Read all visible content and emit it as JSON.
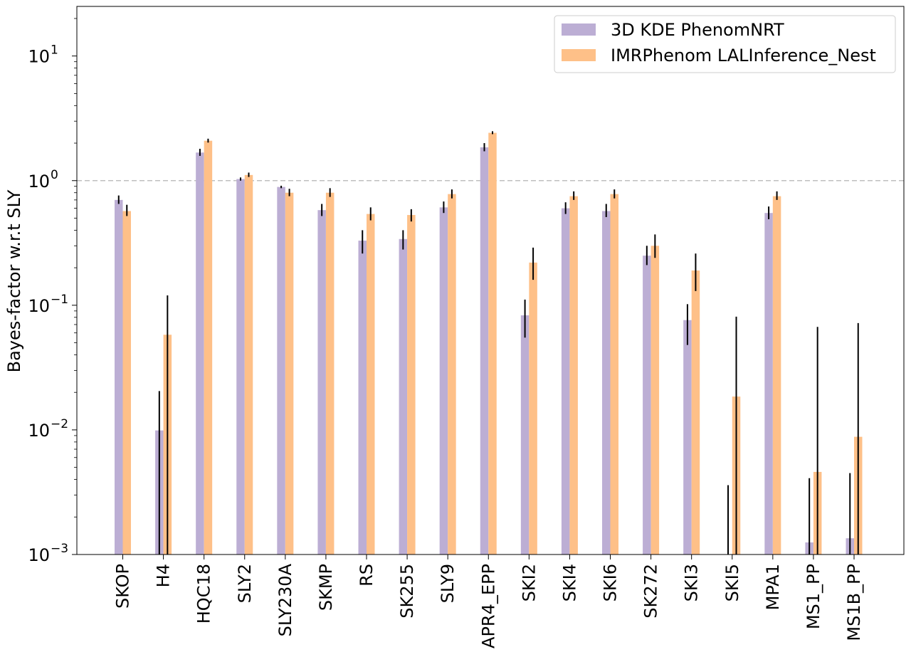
{
  "chart_data": {
    "type": "bar",
    "ylabel": "Bayes-factor w.r.t SLY",
    "yscale": "log",
    "ylim": [
      0.001,
      25
    ],
    "yticks": [
      {
        "value": 0.001,
        "base": "10",
        "exp": "−3"
      },
      {
        "value": 0.01,
        "base": "10",
        "exp": "−2"
      },
      {
        "value": 0.1,
        "base": "10",
        "exp": "−1"
      },
      {
        "value": 1,
        "base": "10",
        "exp": "0"
      },
      {
        "value": 10,
        "base": "10",
        "exp": "1"
      }
    ],
    "reference_line": {
      "value": 1,
      "style": "dashed",
      "color": "#bfbfbf"
    },
    "legend_position": "top-right",
    "categories": [
      "SKOP",
      "H4",
      "HQC18",
      "SLY2",
      "SLY230A",
      "SKMP",
      "RS",
      "SK255",
      "SLY9",
      "APR4_EPP",
      "SKI2",
      "SKI4",
      "SKI6",
      "SK272",
      "SKI3",
      "SKI5",
      "MPA1",
      "MS1_PP",
      "MS1B_PP"
    ],
    "series": [
      {
        "name": "3D KDE PhenomNRT",
        "color": "#bcaed4",
        "values": [
          0.7,
          0.0099,
          1.68,
          1.03,
          0.89,
          0.58,
          0.33,
          0.34,
          0.61,
          1.85,
          0.083,
          0.6,
          0.57,
          0.25,
          0.076,
          0.0009,
          0.55,
          0.00125,
          0.00135
        ],
        "err_low": [
          0.65,
          0.001,
          1.58,
          1.0,
          0.87,
          0.52,
          0.26,
          0.28,
          0.55,
          1.72,
          0.055,
          0.54,
          0.51,
          0.21,
          0.048,
          0.001,
          0.49,
          0.001,
          0.001
        ],
        "err_high": [
          0.76,
          0.0205,
          1.8,
          1.06,
          0.91,
          0.65,
          0.4,
          0.4,
          0.68,
          2.0,
          0.111,
          0.67,
          0.65,
          0.3,
          0.102,
          0.0036,
          0.62,
          0.0041,
          0.0045
        ]
      },
      {
        "name": "IMRPhenom LALInference_Nest",
        "color": "#fec088",
        "values": [
          0.57,
          0.058,
          2.09,
          1.11,
          0.8,
          0.8,
          0.54,
          0.53,
          0.78,
          2.42,
          0.22,
          0.75,
          0.78,
          0.3,
          0.19,
          0.0185,
          0.75,
          0.0046,
          0.0088
        ],
        "err_low": [
          0.52,
          0.001,
          2.02,
          1.07,
          0.75,
          0.74,
          0.48,
          0.47,
          0.72,
          2.36,
          0.16,
          0.7,
          0.72,
          0.24,
          0.13,
          0.001,
          0.7,
          0.001,
          0.001
        ],
        "err_high": [
          0.64,
          0.12,
          2.17,
          1.16,
          0.86,
          0.87,
          0.61,
          0.59,
          0.85,
          2.49,
          0.29,
          0.82,
          0.85,
          0.37,
          0.26,
          0.081,
          0.82,
          0.067,
          0.072
        ]
      }
    ]
  }
}
